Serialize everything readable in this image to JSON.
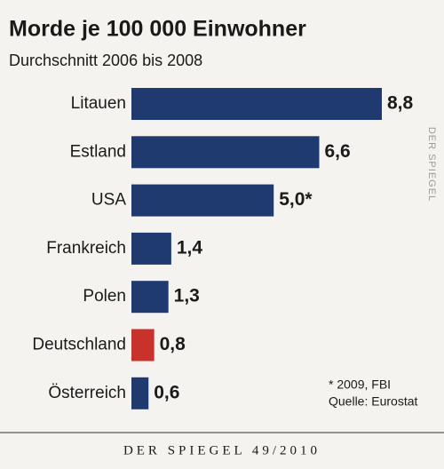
{
  "chart_data": {
    "type": "bar",
    "orientation": "horizontal",
    "title": "Morde je 100 000 Einwohner",
    "subtitle": "Durchschnitt 2006 bis 2008",
    "categories": [
      "Litauen",
      "Estland",
      "USA",
      "Frankreich",
      "Polen",
      "Deutschland",
      "Österreich"
    ],
    "values": [
      8.8,
      6.6,
      5.0,
      1.4,
      1.3,
      0.8,
      0.6
    ],
    "value_labels": [
      "8,8",
      "6,6",
      "5,0*",
      "1,4",
      "1,3",
      "0,8",
      "0,6"
    ],
    "colors": [
      "#1f3a6e",
      "#1f3a6e",
      "#1f3a6e",
      "#1f3a6e",
      "#1f3a6e",
      "#c8322a",
      "#1f3a6e"
    ],
    "annotations": [
      "* 2009, FBI",
      "Quelle: Eurostat"
    ],
    "watermark": "DER SPIEGEL",
    "footer": "DER SPIEGEL 49/2010"
  }
}
